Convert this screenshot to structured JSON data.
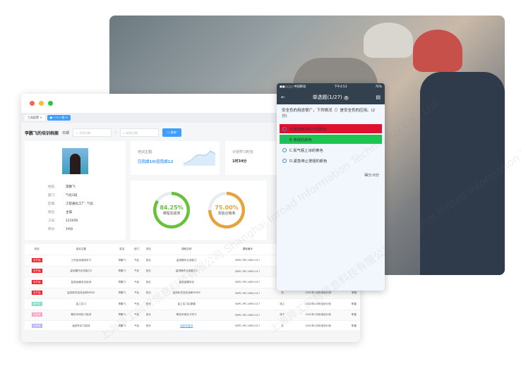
{
  "window": {
    "tabs": [
      {
        "label": "工具配置"
      },
      {
        "label": "一人一档"
      }
    ],
    "page_title": "李鹏飞的培训档案",
    "date_label": "日期",
    "start_placeholder": "开始日期",
    "end_placeholder": "结束日期",
    "query_button": "查询"
  },
  "profile": {
    "fields": [
      {
        "k": "姓名:",
        "v": "李鹏飞"
      },
      {
        "k": "部门:",
        "v": "气化1班"
      },
      {
        "k": "区域:",
        "v": "工智通化工厂: 气化"
      },
      {
        "k": "岗位:",
        "v": "主操"
      },
      {
        "k": "工号:",
        "v": "123456"
      },
      {
        "k": "积分:",
        "v": "19分"
      }
    ]
  },
  "stats": {
    "topic_label": "培训主题:",
    "topic_value": "已完成10/应完成12",
    "hours_label": "计划学习时长",
    "hours_value": "1时34分",
    "course_rate": {
      "value": "84.25%",
      "label": "课程完成率",
      "fraction": 0.8425,
      "color": "#67c23a"
    },
    "exam_rate": {
      "value": "75.00%",
      "label": "测验合格率",
      "fraction": 0.75,
      "color": "#e6a23c"
    }
  },
  "table": {
    "headers": [
      "状态",
      "培训主题",
      "姓名",
      "部门",
      "岗位",
      "课程名称",
      "课程编号",
      "方式",
      "培训计划",
      "类型"
    ],
    "rows": [
      {
        "status": "未开始",
        "color": "#f5222d",
        "c": [
          "工作技术使用学习",
          "李鹏飞",
          "气化",
          "班长",
          "监测操作业务能力",
          "SBPC-PEC-MEH-017",
          "",
          "",
          ""
        ]
      },
      {
        "status": "未开始",
        "color": "#f5222d",
        "c": [
          "监测操作业务能力2",
          "李鹏飞",
          "气化",
          "班长",
          "监测操作业务能力2",
          "SBPC-PEC-MEH-017",
          "",
          "",
          ""
        ]
      },
      {
        "status": "未开始",
        "color": "#f5222d",
        "c": [
          "监测运输安全培训",
          "李鹏飞",
          "气化",
          "班长",
          "监测运输安全",
          "SBPC-PEC-MEH-017",
          "",
          "",
          ""
        ]
      },
      {
        "status": "未开始",
        "color": "#f5222d",
        "c": [
          "监测化学品安全和MSDS",
          "李鹏飞",
          "气化",
          "班长",
          "监测化学品安全和MSDS",
          "SBPC-PEC-MEH-017",
          "无",
          "2020年1月份培训计划",
          "常规"
        ]
      },
      {
        "status": "进行中",
        "color": "#7fdfd0",
        "c": [
          "金工实习",
          "李鹏飞",
          "气化",
          "班长",
          "金工实习实操课",
          "SBPC-PEC-MEH-017",
          "线上",
          "2020年1月份培训计划",
          "职能"
        ]
      },
      {
        "status": "已结束",
        "color": "#f7a1c4",
        "c": [
          "氧化车间实习培训",
          "李鹏飞",
          "气化",
          "班长",
          "氧化车间实习学习",
          "SBPC-PEC-MEH-017",
          "线下",
          "2020年1月份培训计划",
          "职能"
        ]
      },
      {
        "status": "已完成",
        "color": "#b9b6f5",
        "c": [
          "返卸车实习培训",
          "李鹏飞",
          "气化",
          "班长",
          "返卸车复训",
          "SBPC-PEC-MEH-017",
          "无",
          "2020年1月份培训计划",
          "职能"
        ]
      }
    ]
  },
  "phone": {
    "carrier": "●●○○○ 中国移动",
    "time": "下午4:53",
    "battery": "76%",
    "title": "单选题(1/27)",
    "help": "?",
    "question": "安全色的用途很广，下列情况（）是安全色的应用。(2分)",
    "options": [
      {
        "label": "A.管道等涂的不同颜色",
        "state": "wrong",
        "color": "#e0102f"
      },
      {
        "label": "B.电线的颜色",
        "state": "correct",
        "color": "#1dc450"
      },
      {
        "label": "C.氮气瓶上涂的黄色",
        "state": ""
      },
      {
        "label": "D.紧急停止按钮的颜色",
        "state": ""
      }
    ],
    "score": "得分:0分"
  },
  "watermark": "上海异工同智信息科技有限公司 Shanghai Inroad Information Technology Co., Ltd."
}
